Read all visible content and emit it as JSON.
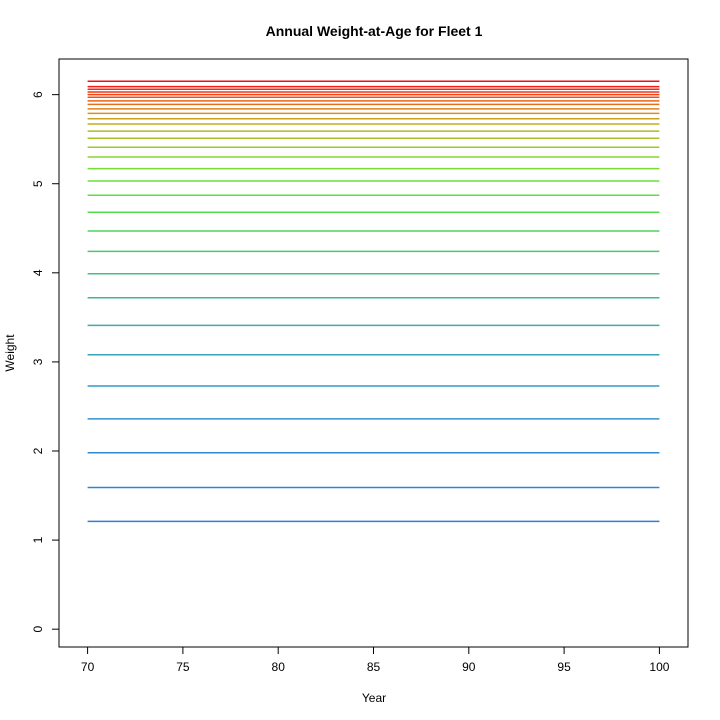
{
  "chart_data": {
    "type": "line",
    "title": "Annual Weight-at-Age for Fleet 1",
    "xlabel": "Year",
    "ylabel": "Weight",
    "xlim": [
      68.5,
      101.5
    ],
    "ylim": [
      -0.2,
      6.4
    ],
    "xticks": [
      70,
      75,
      80,
      85,
      90,
      95,
      100
    ],
    "yticks": [
      0,
      1,
      2,
      3,
      4,
      5,
      6
    ],
    "x": [
      70,
      100
    ],
    "grid": false,
    "legend": "none",
    "series_values": [
      1.21,
      1.59,
      1.98,
      2.36,
      2.73,
      3.08,
      3.41,
      3.72,
      3.99,
      4.24,
      4.47,
      4.68,
      4.87,
      5.03,
      5.17,
      5.3,
      5.41,
      5.51,
      5.59,
      5.67,
      5.73,
      5.79,
      5.84,
      5.89,
      5.93,
      5.97,
      6.0,
      6.03,
      6.06,
      6.09,
      6.15
    ],
    "colors": [
      "#2f7fd8",
      "#2f83d6",
      "#3188d2",
      "#3490cc",
      "#3799c4",
      "#3aa2b8",
      "#3daca9",
      "#40b698",
      "#44c184",
      "#48cb6f",
      "#4dd45a",
      "#52dc4a",
      "#5be040",
      "#6ae03a",
      "#79dc33",
      "#89d52e",
      "#98cd2a",
      "#a6c426",
      "#b4b923",
      "#c1ad21",
      "#cca01f",
      "#d6911d",
      "#de821b",
      "#e5721a",
      "#eb6219",
      "#f05218",
      "#f34317",
      "#f63416",
      "#f82716",
      "#f91b16",
      "#e81010"
    ]
  }
}
